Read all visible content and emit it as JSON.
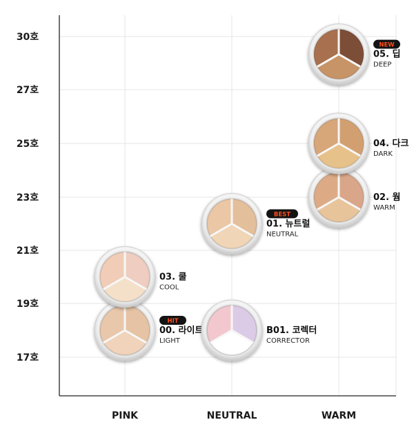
{
  "chart_data": {
    "type": "scatter",
    "title": "",
    "xlabel": "",
    "ylabel": "",
    "categories": [
      "PINK",
      "NEUTRAL",
      "WARM"
    ],
    "y_ticks": [
      "17호",
      "19호",
      "21호",
      "23호",
      "25호",
      "27호",
      "30호"
    ],
    "grid": true,
    "points": [
      {
        "code": "00.",
        "name": "라이트",
        "english": "LIGHT",
        "badge": "HIT",
        "x": "PINK",
        "y": "18호",
        "colors": [
          "#e9c7ab",
          "#e6c3a4",
          "#f0d3ba"
        ]
      },
      {
        "code": "03.",
        "name": "쿨",
        "english": "COOL",
        "badge": "",
        "x": "PINK",
        "y": "20호",
        "colors": [
          "#f1cdb7",
          "#efcdc1",
          "#f4e0c9"
        ]
      },
      {
        "code": "B01.",
        "name": "코렉터",
        "english": "CORRECTOR",
        "badge": "",
        "x": "NEUTRAL",
        "y": "18호",
        "colors": [
          "#f2c8ce",
          "#dccbe6",
          "#ffffff"
        ]
      },
      {
        "code": "01.",
        "name": "뉴트럴",
        "english": "NEUTRAL",
        "badge": "BEST",
        "x": "NEUTRAL",
        "y": "22호",
        "colors": [
          "#ebc7a6",
          "#e4bf9b",
          "#f0d5b6"
        ]
      },
      {
        "code": "02.",
        "name": "웜",
        "english": "WARM",
        "badge": "",
        "x": "WARM",
        "y": "23호",
        "colors": [
          "#dcab86",
          "#d9a68a",
          "#e8c49b"
        ]
      },
      {
        "code": "04.",
        "name": "다크",
        "english": "DARK",
        "badge": "",
        "x": "WARM",
        "y": "25호",
        "colors": [
          "#d7a679",
          "#d2a070",
          "#e7c18a"
        ]
      },
      {
        "code": "05.",
        "name": "딥",
        "english": "DEEP",
        "badge": "NEW",
        "x": "WARM",
        "y": "29호",
        "colors": [
          "#a8704e",
          "#7d4e37",
          "#c79467"
        ]
      }
    ],
    "badge_colors": {
      "bg": "#141414",
      "text": "#ff4d1a"
    }
  }
}
